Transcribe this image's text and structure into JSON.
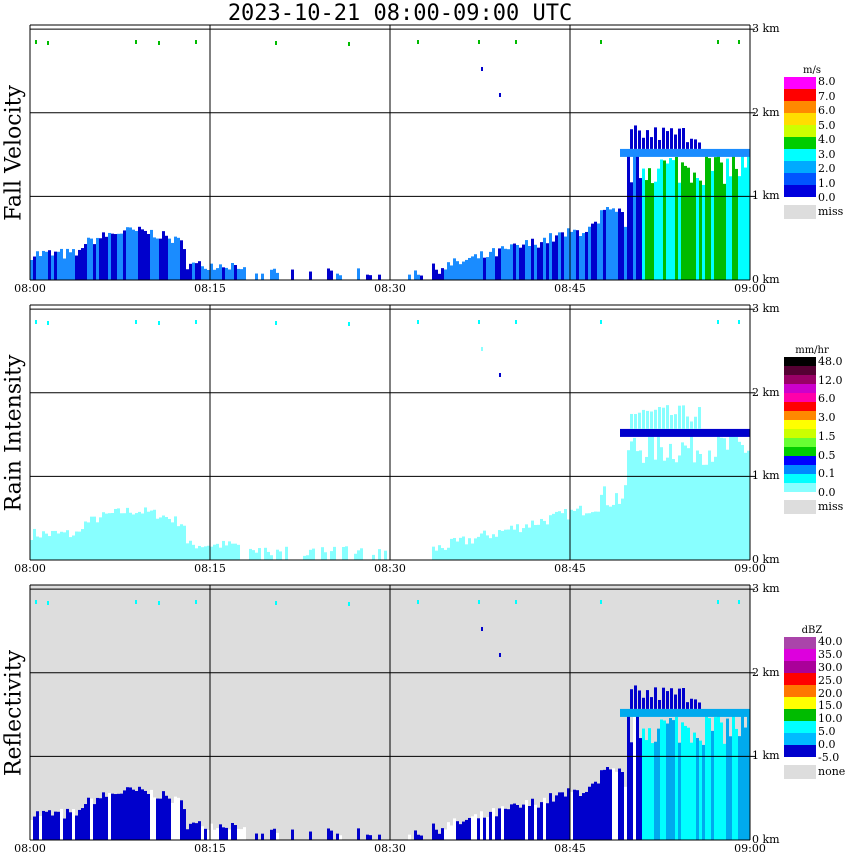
{
  "title": "2023-10-21   08:00-09:00 UTC",
  "colors": {
    "grid": "#000000",
    "miss_bg": "#dddddd",
    "rain": "#88ffff",
    "dark_blue": "#0000cc",
    "mid_blue": "#1a8cff",
    "cyan": "#00ffff",
    "green": "#00bb00",
    "light_blue": "#00aaee"
  },
  "chart_data": [
    {
      "type": "heatmap",
      "ylabel": "Fall Velocity",
      "x_ticks": [
        "08:00",
        "08:15",
        "08:30",
        "08:45",
        "09:00"
      ],
      "y_ticks": [
        "0 km",
        "1 km",
        "2 km",
        "3 km"
      ],
      "xlim": [
        "08:00",
        "09:00"
      ],
      "ylim": [
        0,
        3.05
      ],
      "legend": {
        "unit": "m/s",
        "labels": [
          "8.0",
          "7.0",
          "6.0",
          "5.0",
          "4.0",
          "3.0",
          "2.0",
          "1.0",
          "0.0",
          "miss"
        ],
        "colors": [
          "#ff00ff",
          "#ff0000",
          "#ff8800",
          "#ffdd00",
          "#ccff00",
          "#00cc00",
          "#00ffff",
          "#00aaff",
          "#0055ff",
          "#0000dd"
        ]
      }
    },
    {
      "type": "heatmap",
      "ylabel": "Rain Intensity",
      "x_ticks": [
        "08:00",
        "08:15",
        "08:30",
        "08:45",
        "09:00"
      ],
      "y_ticks": [
        "0 km",
        "1 km",
        "2 km",
        "3 km"
      ],
      "xlim": [
        "08:00",
        "09:00"
      ],
      "ylim": [
        0,
        3.05
      ],
      "legend": {
        "unit": "mm/hr",
        "labels": [
          "48.0",
          "12.0",
          "6.0",
          "3.0",
          "1.5",
          "0.5",
          "0.1",
          "0.0",
          "miss"
        ],
        "colors": [
          "#000000",
          "#550033",
          "#990066",
          "#cc00cc",
          "#ff00aa",
          "#ff0000",
          "#ff8800",
          "#ffff00",
          "#ccff00",
          "#66ff33",
          "#00cc00",
          "#0000ff",
          "#0088ff",
          "#00ffff",
          "#88ffff"
        ]
      }
    },
    {
      "type": "heatmap",
      "ylabel": "Reflectivity",
      "x_ticks": [
        "08:00",
        "08:15",
        "08:30",
        "08:45",
        "09:00"
      ],
      "y_ticks": [
        "0 km",
        "1 km",
        "2 km",
        "3 km"
      ],
      "xlim": [
        "08:00",
        "09:00"
      ],
      "ylim": [
        0,
        3.05
      ],
      "legend": {
        "unit": "dBZ",
        "labels": [
          "40.0",
          "35.0",
          "30.0",
          "25.0",
          "20.0",
          "15.0",
          "10.0",
          "5.0",
          "0.0",
          "-5.0",
          "none"
        ],
        "colors": [
          "#aa44aa",
          "#dd00dd",
          "#aa0099",
          "#ff0000",
          "#ff7700",
          "#ffff00",
          "#00bb00",
          "#00ffff",
          "#00bbff",
          "#0000cc"
        ]
      }
    }
  ]
}
